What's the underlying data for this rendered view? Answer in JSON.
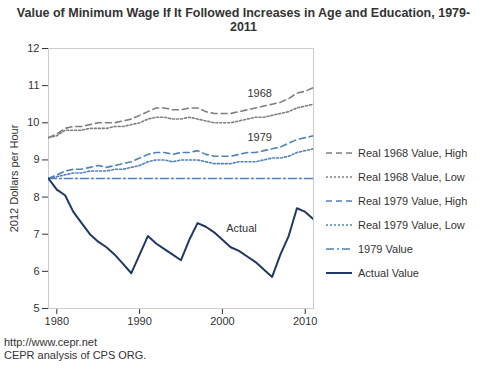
{
  "chart_data": {
    "type": "line",
    "title": "Value of Minimum Wage If It Followed Increases in Age and Education, 1979-2011",
    "y_label": "2012 Dollars per Hour",
    "x": [
      1979,
      1980,
      1981,
      1982,
      1983,
      1984,
      1985,
      1986,
      1987,
      1988,
      1989,
      1990,
      1991,
      1992,
      1993,
      1994,
      1995,
      1996,
      1997,
      1998,
      1999,
      2000,
      2001,
      2002,
      2003,
      2004,
      2005,
      2006,
      2007,
      2008,
      2009,
      2010,
      2011
    ],
    "series": [
      {
        "name": "Real 1968 Value, High",
        "color": "#7f7f7f",
        "line_style": "dashed",
        "values": [
          9.6,
          9.7,
          9.85,
          9.9,
          9.9,
          9.95,
          10.0,
          10.0,
          10.0,
          10.05,
          10.1,
          10.2,
          10.3,
          10.4,
          10.4,
          10.35,
          10.35,
          10.4,
          10.4,
          10.3,
          10.25,
          10.25,
          10.25,
          10.3,
          10.35,
          10.4,
          10.45,
          10.5,
          10.55,
          10.65,
          10.8,
          10.85,
          10.95
        ]
      },
      {
        "name": "Real 1968 Value, Low",
        "color": "#7f7f7f",
        "line_style": "dotted",
        "values": [
          9.6,
          9.65,
          9.8,
          9.8,
          9.8,
          9.85,
          9.85,
          9.85,
          9.9,
          9.9,
          9.95,
          10.0,
          10.1,
          10.15,
          10.15,
          10.1,
          10.1,
          10.15,
          10.1,
          10.05,
          10.0,
          10.0,
          10.0,
          10.05,
          10.1,
          10.15,
          10.15,
          10.2,
          10.25,
          10.3,
          10.4,
          10.45,
          10.5
        ]
      },
      {
        "name": "Real 1979 Value, High",
        "color": "#4f81bd",
        "line_style": "dashed",
        "values": [
          8.5,
          8.6,
          8.7,
          8.75,
          8.75,
          8.8,
          8.85,
          8.8,
          8.85,
          8.9,
          8.95,
          9.05,
          9.15,
          9.2,
          9.2,
          9.15,
          9.2,
          9.2,
          9.25,
          9.15,
          9.1,
          9.1,
          9.1,
          9.15,
          9.2,
          9.2,
          9.25,
          9.3,
          9.35,
          9.45,
          9.55,
          9.6,
          9.65
        ]
      },
      {
        "name": "Real 1979 Value, Low",
        "color": "#4f81bd",
        "line_style": "dotted",
        "values": [
          8.5,
          8.55,
          8.6,
          8.65,
          8.65,
          8.7,
          8.7,
          8.7,
          8.75,
          8.75,
          8.8,
          8.85,
          8.95,
          9.0,
          9.0,
          8.95,
          9.0,
          9.0,
          9.0,
          8.95,
          8.9,
          8.9,
          8.9,
          8.95,
          8.95,
          8.95,
          9.0,
          9.05,
          9.05,
          9.1,
          9.2,
          9.25,
          9.3
        ]
      },
      {
        "name": "1979 Value",
        "color": "#4f81bd",
        "line_style": "dashdot",
        "values": [
          8.5,
          8.5,
          8.5,
          8.5,
          8.5,
          8.5,
          8.5,
          8.5,
          8.5,
          8.5,
          8.5,
          8.5,
          8.5,
          8.5,
          8.5,
          8.5,
          8.5,
          8.5,
          8.5,
          8.5,
          8.5,
          8.5,
          8.5,
          8.5,
          8.5,
          8.5,
          8.5,
          8.5,
          8.5,
          8.5,
          8.5,
          8.5,
          8.5
        ]
      },
      {
        "name": "Actual Value",
        "color": "#1f3864",
        "line_style": "solid",
        "values": [
          8.5,
          8.2,
          8.05,
          7.6,
          7.3,
          7.0,
          6.8,
          6.65,
          6.45,
          6.2,
          5.95,
          6.45,
          6.95,
          6.75,
          6.6,
          6.45,
          6.3,
          6.85,
          7.3,
          7.2,
          7.05,
          6.85,
          6.65,
          6.55,
          6.4,
          6.25,
          6.05,
          5.85,
          6.45,
          6.95,
          7.7,
          7.6,
          7.4
        ]
      }
    ],
    "xlim": [
      1979,
      2011
    ],
    "xticks": [
      1980,
      1990,
      2000,
      2010
    ],
    "ylim": [
      5,
      12
    ],
    "yticks": [
      5,
      6,
      7,
      8,
      9,
      10,
      11,
      12
    ],
    "grid": false,
    "legend": "right",
    "annotations": [
      {
        "text": "1968",
        "x": 2004.5,
        "y": 10.8
      },
      {
        "text": "1979",
        "x": 2004.5,
        "y": 9.6
      },
      {
        "text": "Actual",
        "x": 2002.3,
        "y": 7.15
      }
    ],
    "source": [
      "http://www.cepr.net",
      "CEPR analysis of CPS ORG."
    ]
  }
}
